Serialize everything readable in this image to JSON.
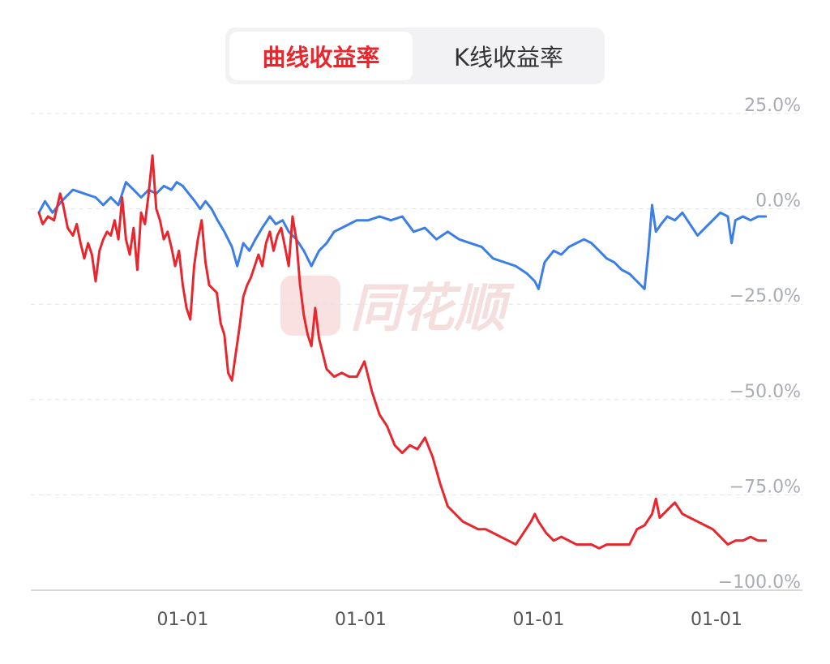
{
  "tabs": {
    "curve_return": "曲线收益率",
    "kline_return": "K线收益率"
  },
  "watermark": "同花顺",
  "colors": {
    "active_tab": "#e8262d",
    "red_series": "#e8262d",
    "blue_series": "#3b7fe6",
    "grid": "#e3e3e3",
    "tick_label": "#a9acb3"
  },
  "chart_data": {
    "type": "line",
    "ylim": [
      -100,
      25
    ],
    "y_ticks": [
      {
        "value": 25,
        "label": "25.0%"
      },
      {
        "value": 0,
        "label": "0.0%"
      },
      {
        "value": -25,
        "label": "−25.0%"
      },
      {
        "value": -50,
        "label": "−50.0%"
      },
      {
        "value": -75,
        "label": "−75.0%"
      },
      {
        "value": -100,
        "label": "−100.0%"
      }
    ],
    "x_ticks": [
      {
        "pos": 0.19,
        "label": "01-01"
      },
      {
        "pos": 0.425,
        "label": "01-01"
      },
      {
        "pos": 0.66,
        "label": "01-01"
      },
      {
        "pos": 0.895,
        "label": "01-01"
      }
    ],
    "grid": true,
    "series": [
      {
        "color": "#3b7fe6",
        "points": [
          [
            0,
            -1
          ],
          [
            0.008,
            2
          ],
          [
            0.018,
            -1
          ],
          [
            0.03,
            2
          ],
          [
            0.045,
            5
          ],
          [
            0.06,
            4
          ],
          [
            0.075,
            3
          ],
          [
            0.085,
            1
          ],
          [
            0.095,
            3
          ],
          [
            0.105,
            1
          ],
          [
            0.115,
            7
          ],
          [
            0.125,
            5
          ],
          [
            0.135,
            3
          ],
          [
            0.145,
            5
          ],
          [
            0.155,
            4
          ],
          [
            0.165,
            6
          ],
          [
            0.175,
            5
          ],
          [
            0.182,
            7
          ],
          [
            0.19,
            6
          ],
          [
            0.198,
            4
          ],
          [
            0.206,
            2
          ],
          [
            0.213,
            0
          ],
          [
            0.22,
            2
          ],
          [
            0.228,
            0
          ],
          [
            0.236,
            -3
          ],
          [
            0.245,
            -6
          ],
          [
            0.255,
            -10
          ],
          [
            0.262,
            -15
          ],
          [
            0.27,
            -9
          ],
          [
            0.278,
            -11
          ],
          [
            0.286,
            -8
          ],
          [
            0.295,
            -5
          ],
          [
            0.305,
            -2
          ],
          [
            0.313,
            -4
          ],
          [
            0.322,
            -3
          ],
          [
            0.33,
            -6
          ],
          [
            0.34,
            -8
          ],
          [
            0.35,
            -11
          ],
          [
            0.36,
            -15
          ],
          [
            0.37,
            -11
          ],
          [
            0.38,
            -9
          ],
          [
            0.39,
            -6
          ],
          [
            0.4,
            -5
          ],
          [
            0.41,
            -4
          ],
          [
            0.42,
            -3
          ],
          [
            0.435,
            -3
          ],
          [
            0.45,
            -2
          ],
          [
            0.465,
            -3
          ],
          [
            0.48,
            -2
          ],
          [
            0.495,
            -6
          ],
          [
            0.51,
            -5
          ],
          [
            0.525,
            -8
          ],
          [
            0.54,
            -6
          ],
          [
            0.555,
            -8
          ],
          [
            0.57,
            -9
          ],
          [
            0.585,
            -10
          ],
          [
            0.6,
            -13
          ],
          [
            0.615,
            -14
          ],
          [
            0.63,
            -15
          ],
          [
            0.645,
            -17
          ],
          [
            0.655,
            -19
          ],
          [
            0.66,
            -21
          ],
          [
            0.668,
            -14
          ],
          [
            0.68,
            -11
          ],
          [
            0.69,
            -12
          ],
          [
            0.7,
            -10
          ],
          [
            0.71,
            -9
          ],
          [
            0.72,
            -8
          ],
          [
            0.73,
            -9
          ],
          [
            0.74,
            -11
          ],
          [
            0.75,
            -13
          ],
          [
            0.76,
            -14
          ],
          [
            0.77,
            -16
          ],
          [
            0.78,
            -17
          ],
          [
            0.79,
            -19
          ],
          [
            0.8,
            -21
          ],
          [
            0.805,
            -11
          ],
          [
            0.81,
            1
          ],
          [
            0.815,
            -6
          ],
          [
            0.822,
            -4
          ],
          [
            0.83,
            -2
          ],
          [
            0.84,
            -3
          ],
          [
            0.85,
            -1
          ],
          [
            0.86,
            -4
          ],
          [
            0.87,
            -7
          ],
          [
            0.88,
            -5
          ],
          [
            0.89,
            -3
          ],
          [
            0.9,
            -1
          ],
          [
            0.91,
            -2
          ],
          [
            0.915,
            -9
          ],
          [
            0.92,
            -3
          ],
          [
            0.93,
            -2
          ],
          [
            0.94,
            -3
          ],
          [
            0.95,
            -2
          ],
          [
            0.96,
            -2
          ]
        ]
      },
      {
        "color": "#e8262d",
        "points": [
          [
            0,
            -1
          ],
          [
            0.005,
            -4
          ],
          [
            0.012,
            -2
          ],
          [
            0.02,
            -3
          ],
          [
            0.028,
            4
          ],
          [
            0.032,
            1
          ],
          [
            0.038,
            -5
          ],
          [
            0.045,
            -7
          ],
          [
            0.05,
            -4
          ],
          [
            0.055,
            -9
          ],
          [
            0.06,
            -13
          ],
          [
            0.065,
            -9
          ],
          [
            0.07,
            -12
          ],
          [
            0.075,
            -19
          ],
          [
            0.08,
            -11
          ],
          [
            0.085,
            -8
          ],
          [
            0.09,
            -6
          ],
          [
            0.095,
            -7
          ],
          [
            0.1,
            -3
          ],
          [
            0.105,
            -8
          ],
          [
            0.11,
            3
          ],
          [
            0.115,
            -8
          ],
          [
            0.12,
            -12
          ],
          [
            0.125,
            -5
          ],
          [
            0.13,
            -16
          ],
          [
            0.135,
            -1
          ],
          [
            0.14,
            -4
          ],
          [
            0.145,
            4
          ],
          [
            0.15,
            14
          ],
          [
            0.155,
            0
          ],
          [
            0.16,
            -3
          ],
          [
            0.165,
            -8
          ],
          [
            0.17,
            -6
          ],
          [
            0.175,
            -10
          ],
          [
            0.18,
            -15
          ],
          [
            0.185,
            -11
          ],
          [
            0.19,
            -20
          ],
          [
            0.195,
            -26
          ],
          [
            0.2,
            -29
          ],
          [
            0.205,
            -15
          ],
          [
            0.21,
            -8
          ],
          [
            0.215,
            -3
          ],
          [
            0.22,
            -14
          ],
          [
            0.225,
            -20
          ],
          [
            0.23,
            -21
          ],
          [
            0.235,
            -22
          ],
          [
            0.24,
            -30
          ],
          [
            0.245,
            -33
          ],
          [
            0.25,
            -43
          ],
          [
            0.255,
            -45
          ],
          [
            0.26,
            -38
          ],
          [
            0.265,
            -31
          ],
          [
            0.27,
            -23
          ],
          [
            0.275,
            -20
          ],
          [
            0.28,
            -18
          ],
          [
            0.285,
            -15
          ],
          [
            0.29,
            -12
          ],
          [
            0.295,
            -15
          ],
          [
            0.3,
            -9
          ],
          [
            0.305,
            -6
          ],
          [
            0.31,
            -11
          ],
          [
            0.315,
            -7
          ],
          [
            0.32,
            -5
          ],
          [
            0.325,
            -10
          ],
          [
            0.33,
            -15
          ],
          [
            0.335,
            -2
          ],
          [
            0.34,
            -8
          ],
          [
            0.345,
            -20
          ],
          [
            0.35,
            -28
          ],
          [
            0.355,
            -33
          ],
          [
            0.36,
            -36
          ],
          [
            0.365,
            -26
          ],
          [
            0.37,
            -34
          ],
          [
            0.375,
            -38
          ],
          [
            0.38,
            -42
          ],
          [
            0.39,
            -44
          ],
          [
            0.4,
            -43
          ],
          [
            0.41,
            -44
          ],
          [
            0.42,
            -44
          ],
          [
            0.43,
            -40
          ],
          [
            0.44,
            -48
          ],
          [
            0.45,
            -54
          ],
          [
            0.46,
            -57
          ],
          [
            0.47,
            -62
          ],
          [
            0.48,
            -64
          ],
          [
            0.49,
            -62
          ],
          [
            0.5,
            -63
          ],
          [
            0.51,
            -60
          ],
          [
            0.52,
            -65
          ],
          [
            0.53,
            -72
          ],
          [
            0.54,
            -78
          ],
          [
            0.55,
            -80
          ],
          [
            0.56,
            -82
          ],
          [
            0.57,
            -83
          ],
          [
            0.58,
            -84
          ],
          [
            0.59,
            -84
          ],
          [
            0.6,
            -85
          ],
          [
            0.61,
            -86
          ],
          [
            0.62,
            -87
          ],
          [
            0.63,
            -88
          ],
          [
            0.64,
            -85
          ],
          [
            0.65,
            -82
          ],
          [
            0.655,
            -80
          ],
          [
            0.66,
            -82
          ],
          [
            0.67,
            -85
          ],
          [
            0.68,
            -87
          ],
          [
            0.69,
            -86
          ],
          [
            0.7,
            -87
          ],
          [
            0.71,
            -88
          ],
          [
            0.72,
            -88
          ],
          [
            0.73,
            -88
          ],
          [
            0.74,
            -89
          ],
          [
            0.75,
            -88
          ],
          [
            0.76,
            -88
          ],
          [
            0.77,
            -88
          ],
          [
            0.78,
            -88
          ],
          [
            0.79,
            -84
          ],
          [
            0.8,
            -83
          ],
          [
            0.81,
            -80
          ],
          [
            0.815,
            -76
          ],
          [
            0.82,
            -81
          ],
          [
            0.83,
            -79
          ],
          [
            0.84,
            -77
          ],
          [
            0.85,
            -80
          ],
          [
            0.86,
            -81
          ],
          [
            0.87,
            -82
          ],
          [
            0.88,
            -83
          ],
          [
            0.89,
            -84
          ],
          [
            0.9,
            -86
          ],
          [
            0.91,
            -88
          ],
          [
            0.92,
            -87
          ],
          [
            0.93,
            -87
          ],
          [
            0.94,
            -86
          ],
          [
            0.95,
            -87
          ],
          [
            0.96,
            -87
          ]
        ]
      }
    ]
  }
}
